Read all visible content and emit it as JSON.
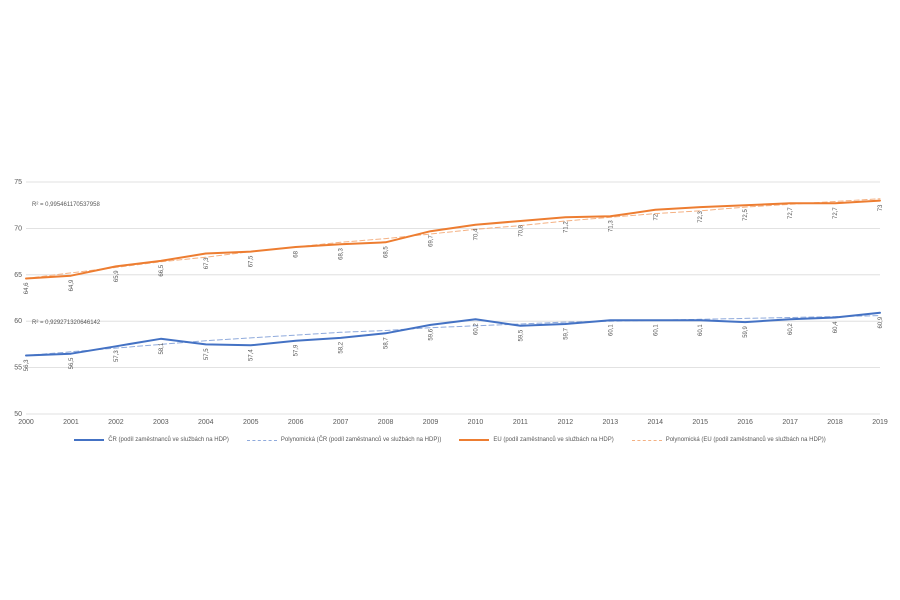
{
  "chart_data": {
    "type": "line",
    "title": "",
    "xlabel": "",
    "ylabel": "",
    "ylim": [
      50,
      75
    ],
    "yticks": [
      50,
      55,
      60,
      65,
      70,
      75
    ],
    "grid": true,
    "legend_position": "bottom",
    "x": [
      "2000",
      "2001",
      "2002",
      "2003",
      "2004",
      "2005",
      "2006",
      "2007",
      "2008",
      "2009",
      "2010",
      "2011",
      "2012",
      "2013",
      "2014",
      "2015",
      "2016",
      "2017",
      "2018",
      "2019"
    ],
    "series": [
      {
        "name": "ČR (podíl zaměstnanců ve službách na HDP)",
        "color": "#4472c4",
        "style": "solid",
        "values": [
          56.3,
          56.5,
          57.3,
          58.1,
          57.5,
          57.4,
          57.9,
          58.2,
          58.7,
          59.6,
          60.2,
          59.5,
          59.7,
          60.1,
          60.1,
          60.1,
          59.9,
          60.2,
          60.4,
          60.9
        ],
        "labels": [
          "56,3",
          "56,5",
          "57,3",
          "58,1",
          "57,5",
          "57,4",
          "57,9",
          "58,2",
          "58,7",
          "59,6",
          "60,2",
          "59,5",
          "59,7",
          "60,1",
          "60,1",
          "60,1",
          "59,9",
          "60,2",
          "60,4",
          "60,9"
        ]
      },
      {
        "name": "Polynomická (ČR (podíl zaměstnanců ve službách na HDP))",
        "color": "#8faadc",
        "style": "dashed",
        "values": [
          56.3,
          56.7,
          57.1,
          57.5,
          57.9,
          58.2,
          58.5,
          58.8,
          59.0,
          59.3,
          59.5,
          59.7,
          59.9,
          60.0,
          60.1,
          60.2,
          60.3,
          60.4,
          60.5,
          60.6
        ],
        "r2": "R² = 0,929271320646142"
      },
      {
        "name": "EU (podíl zaměstnanců ve službách na HDP)",
        "color": "#ed7d31",
        "style": "solid",
        "values": [
          64.6,
          64.9,
          65.9,
          66.5,
          67.3,
          67.5,
          68.0,
          68.3,
          68.5,
          69.7,
          70.4,
          70.8,
          71.2,
          71.3,
          72.0,
          72.3,
          72.5,
          72.7,
          72.7,
          73.0
        ],
        "labels": [
          "64,6",
          "64,9",
          "65,9",
          "66,5",
          "67,3",
          "67,5",
          "68",
          "68,3",
          "68,5",
          "69,7",
          "70,4",
          "70,8",
          "71,2",
          "71,3",
          "72",
          "72,3",
          "72,5",
          "72,7",
          "72,7",
          "73"
        ]
      },
      {
        "name": "Polynomická (EU (podíl zaměstnanců ve službách na HDP))",
        "color": "#f4b183",
        "style": "dashed",
        "values": [
          64.6,
          65.2,
          65.8,
          66.4,
          66.9,
          67.5,
          68.0,
          68.5,
          68.9,
          69.4,
          69.9,
          70.3,
          70.8,
          71.2,
          71.6,
          71.9,
          72.3,
          72.6,
          72.9,
          73.2
        ],
        "r2": "R² = 0,995461170537958"
      }
    ]
  }
}
